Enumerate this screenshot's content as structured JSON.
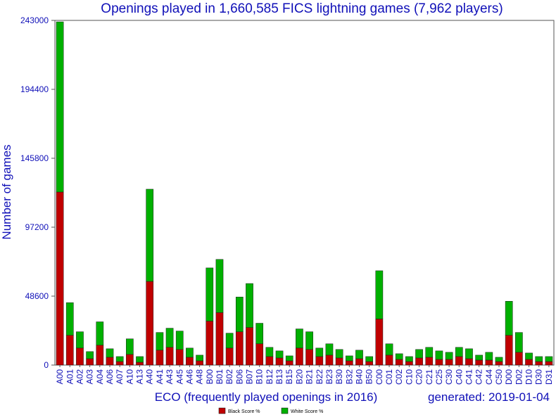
{
  "chart_data": {
    "type": "bar",
    "stacked": true,
    "title": "Openings played in 1,660,585 FICS lightning games (7,962 players)",
    "xlabel": "ECO (frequently played openings in 2016)",
    "ylabel": "Number of games",
    "generated": "generated: 2019-01-04",
    "ylim": [
      0,
      243000
    ],
    "yticks": [
      "0",
      "48600",
      "97200",
      "145800",
      "194400",
      "243000"
    ],
    "ytick_values": [
      0,
      48600,
      97200,
      145800,
      194400,
      243000
    ],
    "grid": false,
    "legend_position": "bottom-center",
    "categories": [
      "A00",
      "A01",
      "A02",
      "A03",
      "A04",
      "A06",
      "A07",
      "A10",
      "A13",
      "A40",
      "A41",
      "A43",
      "A45",
      "A46",
      "A48",
      "B00",
      "B01",
      "B02",
      "B06",
      "B07",
      "B10",
      "B12",
      "B13",
      "B15",
      "B20",
      "B21",
      "B22",
      "B23",
      "B30",
      "B32",
      "B40",
      "B50",
      "C00",
      "C01",
      "C02",
      "C10",
      "C20",
      "C21",
      "C25",
      "C30",
      "C40",
      "C41",
      "C42",
      "C44",
      "C50",
      "D00",
      "D02",
      "D10",
      "D30",
      "D31"
    ],
    "series": [
      {
        "name": "Black Score %",
        "color": "#c00000",
        "values": [
          122000,
          21000,
          12000,
          4500,
          14000,
          5500,
          2500,
          7500,
          2000,
          59000,
          10500,
          12500,
          11000,
          5500,
          3000,
          31000,
          37000,
          12000,
          23500,
          26500,
          15000,
          6000,
          5000,
          3000,
          12000,
          11000,
          6000,
          7000,
          5000,
          3000,
          4500,
          2500,
          32500,
          7000,
          4000,
          2500,
          5000,
          5500,
          4000,
          4000,
          6000,
          4500,
          3500,
          3500,
          2500,
          21000,
          9000,
          4000,
          2500,
          2500
        ]
      },
      {
        "name": "White Score %",
        "color": "#00b000",
        "values": [
          120000,
          23000,
          11500,
          5000,
          16500,
          6000,
          3500,
          11000,
          4000,
          65000,
          12500,
          13500,
          13000,
          6500,
          4000,
          37500,
          37500,
          10500,
          24500,
          31000,
          14500,
          6500,
          5000,
          3500,
          13500,
          12500,
          6000,
          8000,
          6000,
          3500,
          6000,
          3500,
          34000,
          8000,
          4000,
          3500,
          6000,
          7000,
          6000,
          5000,
          6500,
          7000,
          3500,
          5500,
          3000,
          24000,
          14000,
          4500,
          3500,
          3500
        ]
      }
    ]
  }
}
